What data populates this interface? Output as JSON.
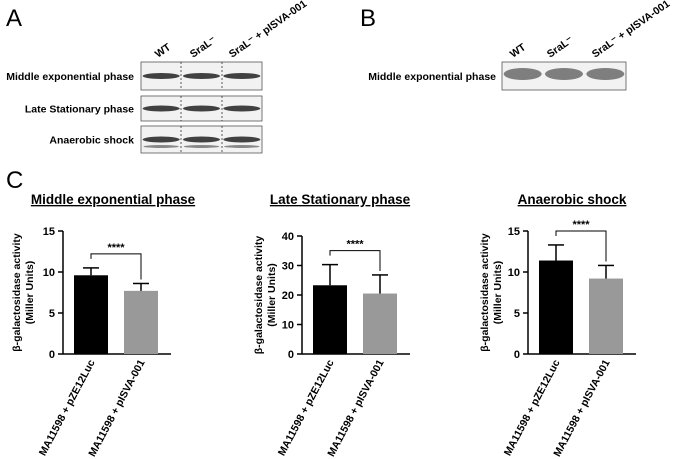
{
  "panels": {
    "a": "A",
    "b": "B",
    "c": "C"
  },
  "blot_a": {
    "lanes": [
      "WT",
      "SraL⁻",
      "SraL⁻ + pISVA-001"
    ],
    "rows": [
      "Middle exponential phase",
      "Late Stationary phase",
      "Anaerobic shock"
    ]
  },
  "blot_b": {
    "lanes": [
      "WT",
      "SraL⁻",
      "SraL⁻ + pISVA-001"
    ],
    "rows": [
      "Middle exponential phase"
    ]
  },
  "chart_data": [
    {
      "type": "bar",
      "title": "Middle exponential phase",
      "ylabel": [
        "β-galactosidase activity",
        "(Miller Units)"
      ],
      "categories": [
        "MA11598 + pZE12Luc",
        "MA11598 + pISVA-001"
      ],
      "values": [
        9.6,
        7.7
      ],
      "errors": [
        0.9,
        0.9
      ],
      "colors": [
        "#000000",
        "#999999"
      ],
      "ylim": [
        0,
        15
      ],
      "yticks": [
        0,
        5,
        10,
        15
      ],
      "annotation": "****"
    },
    {
      "type": "bar",
      "title": "Late Stationary phase",
      "ylabel": [
        "β-galactosidase activity",
        "(Miller Units)"
      ],
      "categories": [
        "MA11598 + pZE12Luc",
        "MA11598 + pISVA-001"
      ],
      "values": [
        23.3,
        20.5
      ],
      "errors": [
        7,
        6.3
      ],
      "colors": [
        "#000000",
        "#999999"
      ],
      "ylim": [
        0,
        40
      ],
      "yticks": [
        0,
        10,
        20,
        30,
        40
      ],
      "annotation": "****"
    },
    {
      "type": "bar",
      "title": "Anaerobic shock",
      "ylabel": [
        "β-galactosidase activity",
        "(Miller Units)"
      ],
      "categories": [
        "MA11598 + pZE12Luc",
        "MA11598 + pISVA-001"
      ],
      "values": [
        11.4,
        9.2
      ],
      "errors": [
        1.9,
        1.6
      ],
      "colors": [
        "#000000",
        "#999999"
      ],
      "ylim": [
        0,
        15
      ],
      "yticks": [
        0,
        5,
        10,
        15
      ],
      "annotation": "****"
    }
  ]
}
